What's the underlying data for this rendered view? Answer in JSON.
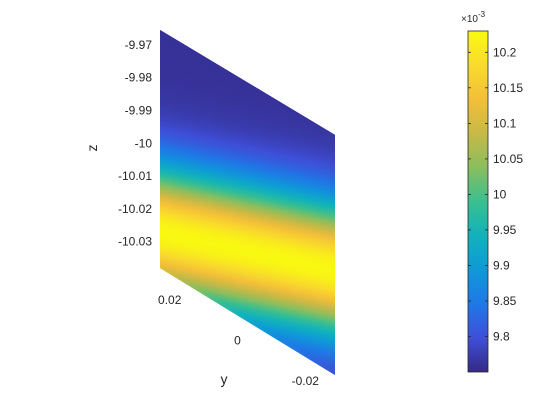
{
  "chart_data": {
    "type": "scatter",
    "subtype": "3d-scatter-colored",
    "title": "",
    "xlabel": "",
    "ylabel": "y",
    "zlabel": "z",
    "y_ticks": [
      0.02,
      0,
      -0.02
    ],
    "y_tick_labels": [
      "0.02",
      "0",
      "-0.02"
    ],
    "z_ticks": [
      -9.97,
      -9.98,
      -9.99,
      -10,
      -10.01,
      -10.02,
      -10.03
    ],
    "z_tick_labels": [
      "-9.97",
      "-9.98",
      "-9.99",
      "-10",
      "-10.01",
      "-10.02",
      "-10.03"
    ],
    "y_range": [
      0.0258,
      -0.0258
    ],
    "z_range": [
      -9.9655,
      -10.038
    ],
    "colorbar": {
      "range": [
        0.00975,
        0.01023
      ],
      "ticks": [
        0.0098,
        0.00985,
        0.0099,
        0.00995,
        0.01,
        0.01005,
        0.0101,
        0.01015,
        0.0102
      ],
      "tick_labels": [
        "9.8",
        "9.85",
        "9.9",
        "9.95",
        "10",
        "10.05",
        "10.1",
        "10.15",
        "10.2"
      ],
      "exponent_label": "×10",
      "exponent_power": "-3",
      "colormap": "parula",
      "colormap_stops": [
        "#352A87",
        "#3E4FD8",
        "#1F78E6",
        "#0F99D8",
        "#12B2BB",
        "#3ABF8F",
        "#8ABE5E",
        "#C7B946",
        "#F3BF39",
        "#F9DB2C",
        "#F9FB0E"
      ]
    },
    "value_model": {
      "description_of_surface": "color value as function of (y, z)",
      "center_value": 0.010225,
      "peak_z_offset_per_y": -0.4,
      "peak_center_z": -10.018,
      "edge_value": 0.00976,
      "decay_width": 0.02
    },
    "grid": false
  }
}
